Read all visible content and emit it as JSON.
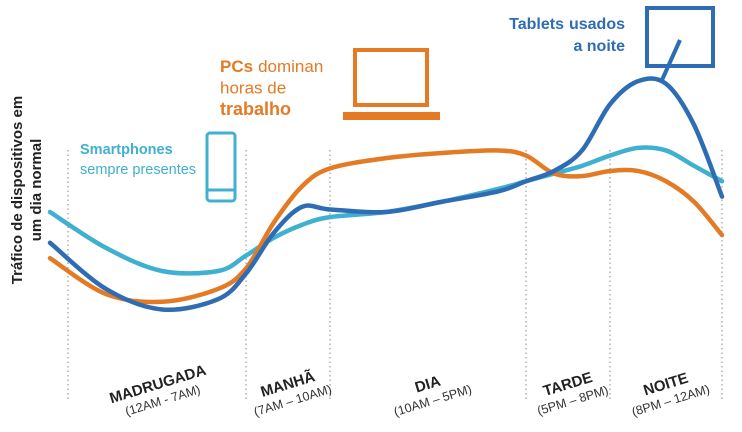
{
  "chart_data": {
    "type": "line",
    "y_label_lines": [
      "Tráfico de dispositivos em",
      "um dia normal"
    ],
    "x": [
      0,
      2,
      4,
      6,
      7,
      8,
      9,
      10,
      12,
      14,
      16,
      17,
      18,
      19,
      20,
      21,
      22,
      23,
      24
    ],
    "xlim": [
      0,
      24
    ],
    "xticks": [
      0,
      7,
      10,
      17,
      20,
      24
    ],
    "ylim": [
      0,
      100
    ],
    "categories": [
      "MADRUGADA",
      "MANHÃ",
      "DIA",
      "TARDE",
      "NOITE"
    ],
    "category_ranges": [
      "(12AM - 7AM)",
      "(7AM – 10AM)",
      "(10AM – 5PM)",
      "(5PM – 8PM)",
      "(8PM – 12AM)"
    ],
    "series": [
      {
        "name": "Smartphones",
        "color": "#3fb0d0",
        "note": [
          "sempre presentes"
        ],
        "values": [
          46,
          32,
          23,
          23,
          29,
          36,
          41,
          44,
          46,
          50,
          55,
          58,
          61,
          64,
          68,
          71,
          70,
          64,
          58
        ]
      },
      {
        "name": "PCs",
        "color": "#e57a24",
        "note": [
          "dominan",
          "horas de",
          "trabalho"
        ],
        "values": [
          28,
          14,
          11,
          16,
          24,
          42,
          56,
          63,
          67,
          69,
          70,
          68,
          61,
          60,
          62,
          62,
          58,
          50,
          37
        ]
      },
      {
        "name": "Tablets",
        "color": "#2e6db4",
        "note": [
          "usados",
          "a noite"
        ],
        "values": [
          34,
          16,
          8,
          12,
          22,
          38,
          48,
          47,
          46,
          50,
          54,
          58,
          62,
          70,
          88,
          97,
          96,
          80,
          52
        ]
      }
    ]
  }
}
